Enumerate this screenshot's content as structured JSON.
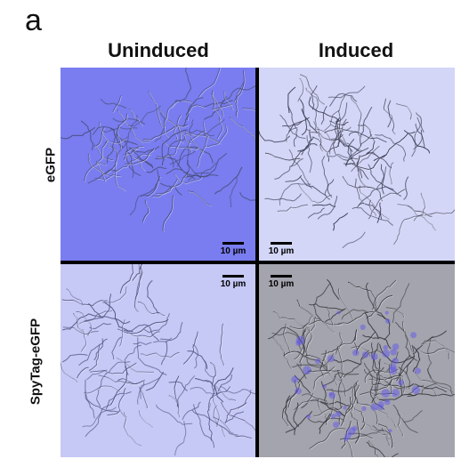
{
  "panel_label": "a",
  "columns": [
    "Uninduced",
    "Induced"
  ],
  "rows": [
    "eGFP",
    "SpyTag-eGFP"
  ],
  "tiles": [
    {
      "row": "eGFP",
      "column": "Uninduced",
      "scale_bar": "10 µm",
      "tint": "#6f74ee"
    },
    {
      "row": "eGFP",
      "column": "Induced",
      "scale_bar": "10 µm",
      "tint": "#d3d6f6"
    },
    {
      "row": "SpyTag-eGFP",
      "column": "Uninduced",
      "scale_bar": "10 µm",
      "tint": "#c6c9f5"
    },
    {
      "row": "SpyTag-eGFP",
      "column": "Induced",
      "scale_bar": "10 µm",
      "tint": "#a4a4ae"
    }
  ]
}
